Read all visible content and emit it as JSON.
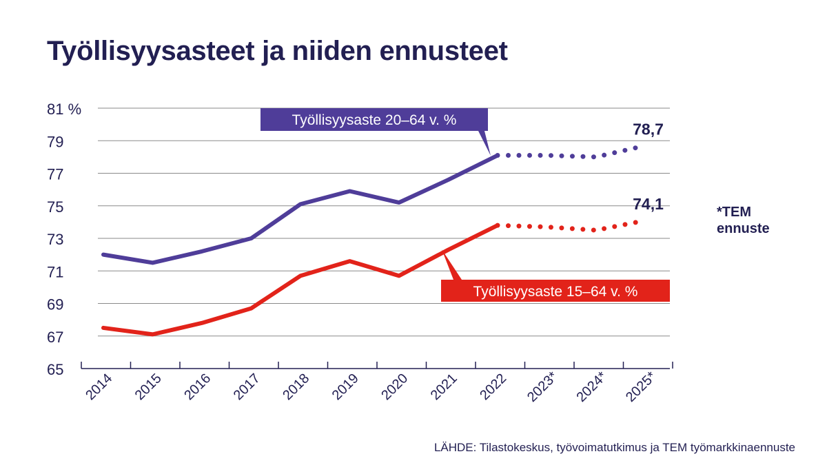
{
  "chart_data": {
    "type": "line",
    "title": "Työllisyysasteet ja niiden ennusteet",
    "y_unit": "%",
    "ylim": [
      65,
      81
    ],
    "y_ticks": [
      65,
      67,
      69,
      71,
      73,
      75,
      77,
      79,
      81
    ],
    "y_tick_labels": [
      "65",
      "67",
      "69",
      "71",
      "73",
      "75",
      "77",
      "79",
      "81 %"
    ],
    "categories": [
      "2014",
      "2015",
      "2016",
      "2017",
      "2018",
      "2019",
      "2020",
      "2021",
      "2022",
      "2023*",
      "2024*",
      "2025*"
    ],
    "grid": true,
    "series": [
      {
        "name": "Työllisyysaste 20–64 v. %",
        "color": "#4f3d99",
        "values": [
          72.0,
          71.5,
          72.2,
          73.0,
          75.1,
          75.9,
          75.2,
          76.6,
          78.1,
          78.1,
          78.0,
          78.7
        ],
        "forecast_from_index": 8,
        "end_label": "78,7"
      },
      {
        "name": "Työllisyysaste 15–64 v. %",
        "color": "#e2231a",
        "values": [
          67.5,
          67.1,
          67.8,
          68.7,
          70.7,
          71.6,
          70.7,
          72.3,
          73.8,
          73.7,
          73.5,
          74.1
        ],
        "forecast_from_index": 8,
        "end_label": "74,1"
      }
    ]
  },
  "forecast_note": [
    "*TEM",
    "ennuste"
  ],
  "source": "LÄHDE: Tilastokeskus, työvoimatutkimus ja TEM työmarkkinaennuste"
}
